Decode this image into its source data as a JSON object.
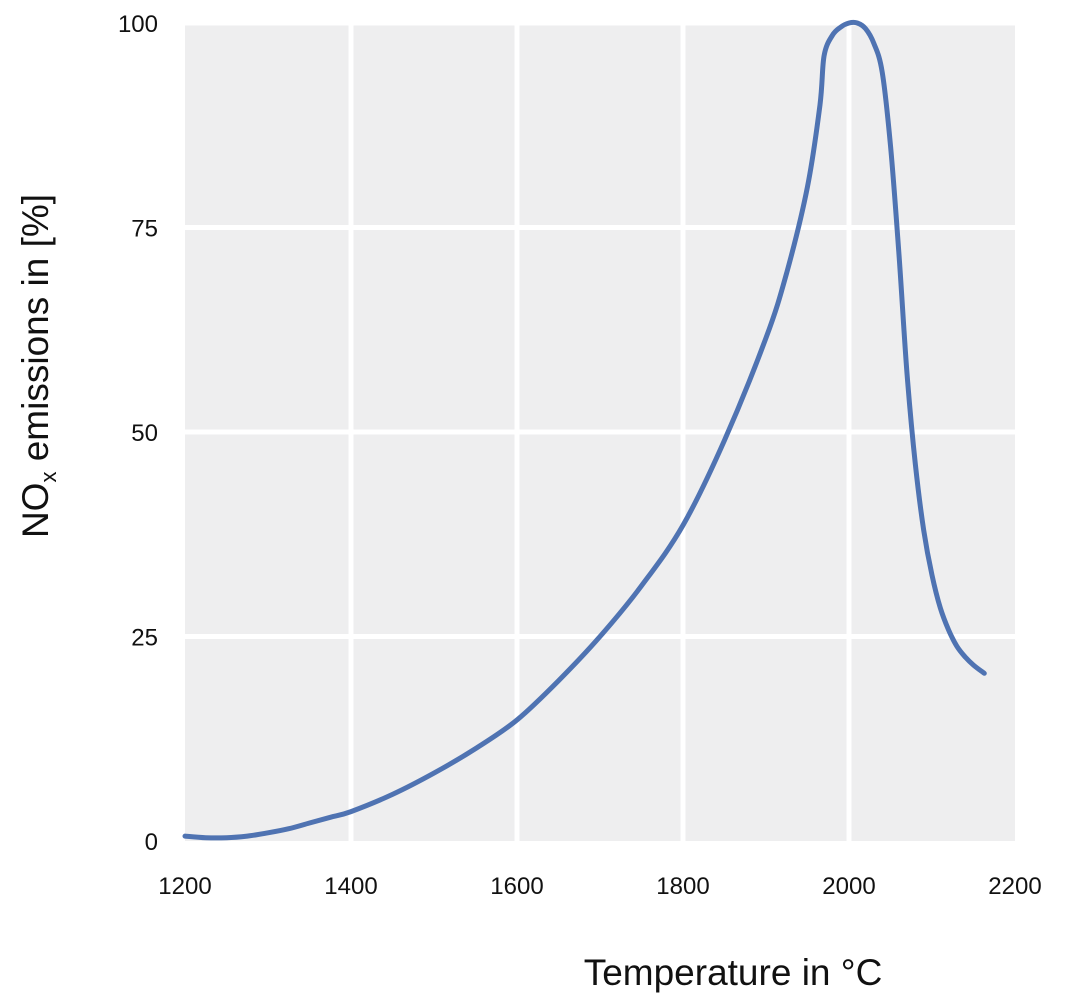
{
  "chart_data": {
    "type": "line",
    "title": "",
    "xlabel": "Temperature in °C",
    "ylabel_main": "NO",
    "ylabel_sub": "x",
    "ylabel_rest": " emissions in [%]",
    "xlim": [
      1200,
      2200
    ],
    "ylim": [
      0,
      100
    ],
    "xticks": [
      "1200",
      "1400",
      "1600",
      "1800",
      "2000",
      "2200"
    ],
    "yticks": [
      "0",
      "25",
      "50",
      "75",
      "100"
    ],
    "grid": true,
    "background": "#eeeeef",
    "series": [
      {
        "color": "#4f73b2",
        "x": [
          1200,
          1225,
          1250,
          1275,
          1300,
          1325,
          1350,
          1375,
          1400,
          1450,
          1500,
          1550,
          1600,
          1650,
          1700,
          1750,
          1800,
          1850,
          1900,
          1925,
          1950,
          1965,
          1970,
          1980,
          1990,
          2000,
          2010,
          2020,
          2030,
          2040,
          2050,
          2060,
          2070,
          2080,
          2090,
          2100,
          2110,
          2120,
          2130,
          2140,
          2150,
          2163
        ],
        "y": [
          0.6,
          0.4,
          0.4,
          0.6,
          1.0,
          1.5,
          2.2,
          2.9,
          3.6,
          5.7,
          8.3,
          11.3,
          14.8,
          19.6,
          25.0,
          31.2,
          38.6,
          49.0,
          61.5,
          69.5,
          80.0,
          90.0,
          96.0,
          98.5,
          99.5,
          100.0,
          100.0,
          99.3,
          97.5,
          94.0,
          85.0,
          72.0,
          57.0,
          46.0,
          38.0,
          32.5,
          28.5,
          25.8,
          23.8,
          22.5,
          21.5,
          20.5
        ]
      }
    ]
  }
}
